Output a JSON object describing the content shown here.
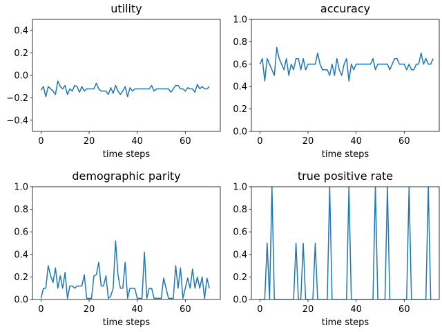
{
  "chart_data": [
    {
      "type": "line",
      "title": "utility",
      "xlabel": "time steps",
      "ylabel": "",
      "xlim": [
        -3.55,
        74.55
      ],
      "ylim": [
        -0.5,
        0.5
      ],
      "xticks": [
        0,
        20,
        40,
        60
      ],
      "yticks": [
        -0.4,
        -0.2,
        0.0,
        0.2,
        0.4
      ],
      "ytick_labels": [
        "−0.4",
        "−0.2",
        "0.0",
        "0.2",
        "0.4"
      ],
      "color": "#1f77b4",
      "x_start": 0,
      "values": [
        -0.13,
        -0.1,
        -0.19,
        -0.1,
        -0.12,
        -0.14,
        -0.17,
        -0.05,
        -0.1,
        -0.12,
        -0.09,
        -0.17,
        -0.12,
        -0.14,
        -0.09,
        -0.1,
        -0.15,
        -0.1,
        -0.14,
        -0.12,
        -0.12,
        -0.12,
        -0.12,
        -0.07,
        -0.12,
        -0.14,
        -0.14,
        -0.14,
        -0.17,
        -0.11,
        -0.16,
        -0.09,
        -0.14,
        -0.17,
        -0.14,
        -0.1,
        -0.19,
        -0.11,
        -0.14,
        -0.12,
        -0.12,
        -0.12,
        -0.12,
        -0.12,
        -0.12,
        -0.12,
        -0.09,
        -0.14,
        -0.12,
        -0.12,
        -0.12,
        -0.12,
        -0.12,
        -0.12,
        -0.15,
        -0.12,
        -0.09,
        -0.09,
        -0.12,
        -0.12,
        -0.14,
        -0.11,
        -0.12,
        -0.12,
        -0.15,
        -0.08,
        -0.12,
        -0.1,
        -0.12,
        -0.12,
        -0.1
      ]
    },
    {
      "type": "line",
      "title": "accuracy",
      "xlabel": "time steps",
      "ylabel": "",
      "xlim": [
        -3.55,
        74.55
      ],
      "ylim": [
        0.0,
        1.0
      ],
      "xticks": [
        0,
        20,
        40,
        60
      ],
      "yticks": [
        0.0,
        0.2,
        0.4,
        0.6,
        0.8,
        1.0
      ],
      "ytick_labels": [
        "0.0",
        "0.2",
        "0.4",
        "0.6",
        "0.8",
        "1.0"
      ],
      "color": "#1f77b4",
      "x_start": 0,
      "values": [
        0.6,
        0.65,
        0.45,
        0.65,
        0.6,
        0.55,
        0.5,
        0.75,
        0.65,
        0.6,
        0.55,
        0.65,
        0.5,
        0.6,
        0.55,
        0.65,
        0.65,
        0.55,
        0.65,
        0.55,
        0.6,
        0.6,
        0.6,
        0.6,
        0.7,
        0.6,
        0.55,
        0.55,
        0.55,
        0.5,
        0.6,
        0.5,
        0.65,
        0.55,
        0.5,
        0.6,
        0.65,
        0.45,
        0.6,
        0.55,
        0.6,
        0.6,
        0.6,
        0.6,
        0.6,
        0.6,
        0.6,
        0.65,
        0.55,
        0.6,
        0.6,
        0.6,
        0.6,
        0.6,
        0.55,
        0.6,
        0.65,
        0.65,
        0.6,
        0.6,
        0.6,
        0.55,
        0.6,
        0.55,
        0.55,
        0.6,
        0.6,
        0.7,
        0.6,
        0.65,
        0.6,
        0.6,
        0.65
      ]
    },
    {
      "type": "line",
      "title": "demographic parity",
      "xlabel": "time steps",
      "ylabel": "",
      "xlim": [
        -3.55,
        74.55
      ],
      "ylim": [
        0.0,
        1.0
      ],
      "xticks": [
        0,
        20,
        40,
        60
      ],
      "yticks": [
        0.0,
        0.2,
        0.4,
        0.6,
        0.8,
        1.0
      ],
      "ytick_labels": [
        "0.0",
        "0.2",
        "0.4",
        "0.6",
        "0.8",
        "1.0"
      ],
      "color": "#1f77b4",
      "x_start": 0,
      "values": [
        0.01,
        0.1,
        0.1,
        0.3,
        0.21,
        0.15,
        0.28,
        0.1,
        0.21,
        0.1,
        0.24,
        0.01,
        0.12,
        0.12,
        0.1,
        0.12,
        0.12,
        0.12,
        0.22,
        0.01,
        0.01,
        0.01,
        0.21,
        0.22,
        0.33,
        0.12,
        0.12,
        0.21,
        0.01,
        0.03,
        0.1,
        0.52,
        0.22,
        0.1,
        0.1,
        0.33,
        0.01,
        0.1,
        0.1,
        0.1,
        0.01,
        0.01,
        0.01,
        0.42,
        0.01,
        0.1,
        0.1,
        0.01,
        0.01,
        0.01,
        0.01,
        0.19,
        0.1,
        0.01,
        0.01,
        0.01,
        0.3,
        0.1,
        0.28,
        0.01,
        0.1,
        0.19,
        0.1,
        0.27,
        0.1,
        0.2,
        0.1,
        0.2,
        0.01,
        0.19,
        0.1
      ]
    },
    {
      "type": "line",
      "title": "true positive rate",
      "xlabel": "time steps",
      "ylabel": "",
      "xlim": [
        -3.55,
        74.55
      ],
      "ylim": [
        0.0,
        1.0
      ],
      "xticks": [
        0,
        20,
        40,
        60
      ],
      "yticks": [
        0.0,
        0.2,
        0.4,
        0.6,
        0.8,
        1.0
      ],
      "ytick_labels": [
        "0.0",
        "0.2",
        "0.4",
        "0.6",
        "0.8",
        "1.0"
      ],
      "color": "#1f77b4",
      "x_start": 0,
      "values": [
        0,
        0,
        0,
        0.5,
        0,
        1.0,
        0,
        0,
        0,
        0,
        0,
        0,
        0,
        0,
        0,
        0.5,
        0,
        0,
        0.5,
        0,
        0,
        0,
        0,
        0.5,
        0,
        0,
        0,
        0,
        0,
        1.0,
        0,
        0,
        0,
        0,
        0,
        0,
        0,
        1.0,
        0,
        0,
        0,
        0,
        0,
        0,
        0,
        0,
        0,
        0,
        1.0,
        0,
        0,
        0,
        0,
        1.0,
        0,
        0,
        0,
        0,
        0,
        0,
        0,
        0,
        1.0,
        0,
        0,
        0,
        0,
        0,
        0,
        0,
        1.0,
        0
      ]
    }
  ]
}
